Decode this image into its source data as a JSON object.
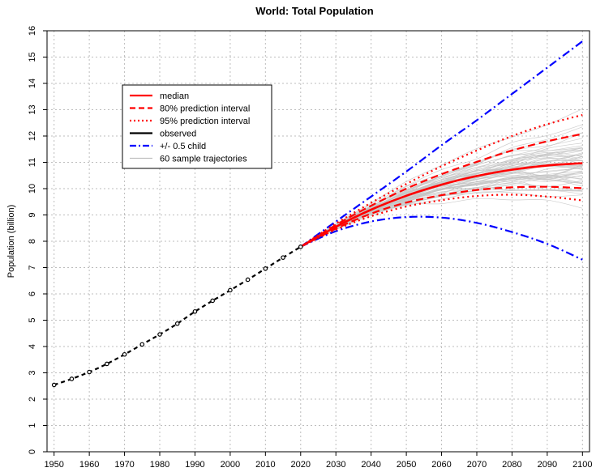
{
  "chart_data": {
    "type": "line",
    "title": "World: Total Population",
    "xlabel": "",
    "ylabel": "Population (billion)",
    "xlim": [
      1948,
      2102
    ],
    "ylim": [
      0,
      16
    ],
    "grid": true,
    "legend_placement": "top-left",
    "x_ticks": [
      1950,
      1960,
      1970,
      1980,
      1990,
      2000,
      2010,
      2020,
      2030,
      2040,
      2050,
      2060,
      2070,
      2080,
      2090,
      2100
    ],
    "y_ticks": [
      0,
      1,
      2,
      3,
      4,
      5,
      6,
      7,
      8,
      9,
      10,
      11,
      12,
      13,
      14,
      15,
      16
    ],
    "legend": [
      {
        "label": "median",
        "color": "#ff0000",
        "style": "solid"
      },
      {
        "label": "80% prediction interval",
        "color": "#ff0000",
        "style": "dashed"
      },
      {
        "label": "95% prediction interval",
        "color": "#ff0000",
        "style": "dotted"
      },
      {
        "label": "observed",
        "color": "#000000",
        "style": "solid"
      },
      {
        "label": "+/- 0.5 child",
        "color": "#0000ff",
        "style": "dashdot"
      },
      {
        "label": "60 sample trajectories",
        "color": "#bebebe",
        "style": "thin"
      }
    ],
    "series": [
      {
        "name": "observed",
        "color": "#000000",
        "style": "dashed-markers",
        "x": [
          1950,
          1955,
          1960,
          1965,
          1970,
          1975,
          1980,
          1985,
          1990,
          1995,
          2000,
          2005,
          2010,
          2015,
          2020
        ],
        "y": [
          2.54,
          2.77,
          3.03,
          3.34,
          3.7,
          4.08,
          4.46,
          4.87,
          5.33,
          5.74,
          6.14,
          6.54,
          6.96,
          7.38,
          7.79
        ]
      },
      {
        "name": "median",
        "color": "#ff0000",
        "style": "solid",
        "x": [
          2020,
          2030,
          2040,
          2050,
          2060,
          2070,
          2080,
          2090,
          2100
        ],
        "y": [
          7.79,
          8.55,
          9.2,
          9.73,
          10.15,
          10.48,
          10.72,
          10.88,
          10.97
        ]
      },
      {
        "name": "80% prediction interval (upper)",
        "color": "#ff0000",
        "style": "dashed",
        "x": [
          2020,
          2030,
          2040,
          2050,
          2060,
          2070,
          2080,
          2090,
          2100
        ],
        "y": [
          7.79,
          8.62,
          9.35,
          10.0,
          10.55,
          11.02,
          11.45,
          11.8,
          12.08
        ]
      },
      {
        "name": "80% prediction interval (lower)",
        "color": "#ff0000",
        "style": "dashed",
        "x": [
          2020,
          2030,
          2040,
          2050,
          2060,
          2070,
          2080,
          2090,
          2100
        ],
        "y": [
          7.79,
          8.48,
          9.05,
          9.47,
          9.75,
          9.95,
          10.05,
          10.07,
          10.02
        ]
      },
      {
        "name": "95% prediction interval (upper)",
        "color": "#ff0000",
        "style": "dotted",
        "x": [
          2020,
          2030,
          2040,
          2050,
          2060,
          2070,
          2080,
          2090,
          2100
        ],
        "y": [
          7.79,
          8.67,
          9.46,
          10.18,
          10.85,
          11.45,
          12.0,
          12.45,
          12.8
        ]
      },
      {
        "name": "95% prediction interval (lower)",
        "color": "#ff0000",
        "style": "dotted",
        "x": [
          2020,
          2030,
          2040,
          2050,
          2060,
          2070,
          2080,
          2090,
          2100
        ],
        "y": [
          7.79,
          8.44,
          8.95,
          9.32,
          9.56,
          9.72,
          9.77,
          9.7,
          9.55
        ]
      },
      {
        "name": "+/- 0.5 child (upper)",
        "color": "#0000ff",
        "style": "dashdot",
        "x": [
          2020,
          2030,
          2040,
          2050,
          2060,
          2070,
          2080,
          2090,
          2100
        ],
        "y": [
          7.79,
          8.75,
          9.7,
          10.65,
          11.65,
          12.6,
          13.6,
          14.6,
          15.6
        ]
      },
      {
        "name": "+/- 0.5 child (lower)",
        "color": "#0000ff",
        "style": "dashdot",
        "x": [
          2020,
          2030,
          2040,
          2050,
          2060,
          2070,
          2080,
          2090,
          2100
        ],
        "y": [
          7.79,
          8.38,
          8.75,
          8.92,
          8.9,
          8.7,
          8.35,
          7.9,
          7.3
        ]
      }
    ]
  }
}
